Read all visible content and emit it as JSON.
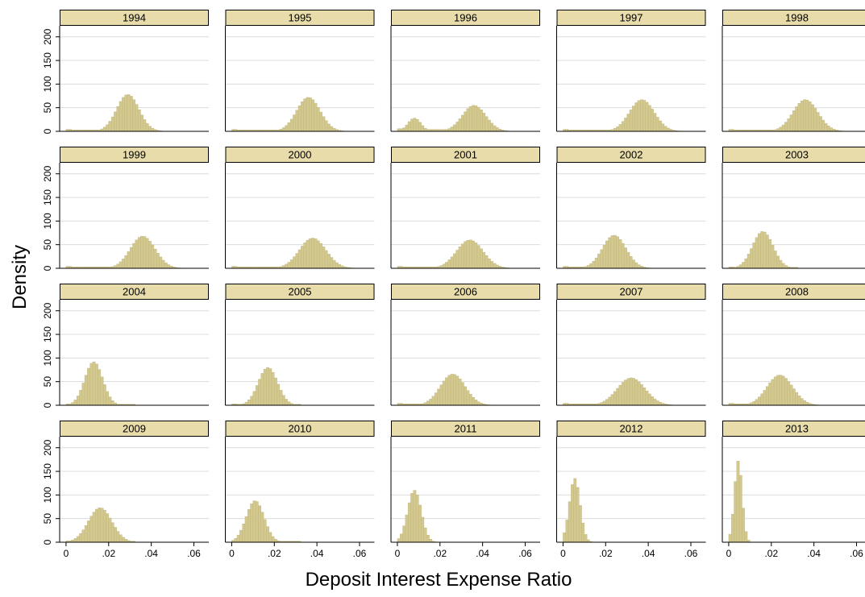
{
  "chart_data": {
    "type": "histogram",
    "layout": "faceted-grid",
    "xlabel": "Deposit Interest Expense Ratio",
    "ylabel": "Density",
    "xlim": [
      -0.003,
      0.067
    ],
    "ylim": [
      0,
      220
    ],
    "xticks": [
      0,
      0.02,
      0.04,
      0.06
    ],
    "xtick_labels": [
      "0",
      ".02",
      ".04",
      ".06"
    ],
    "yticks": [
      0,
      50,
      100,
      150,
      200
    ],
    "ytick_labels": [
      "0",
      "50",
      "100",
      "150",
      "200"
    ],
    "grid": "horizontal",
    "bin_width": 0.00125,
    "colors": {
      "bar_fill": "#d3c98f",
      "bar_stroke": "#bdb27a",
      "strip_fill": "#e8dcaa",
      "grid": "#dcdcdc",
      "axis": "#000000"
    },
    "panels": [
      {
        "year": "1994",
        "components": [
          {
            "mean": 0.029,
            "sd": 0.0052,
            "peak": 78
          }
        ],
        "tail": 3
      },
      {
        "year": "1995",
        "components": [
          {
            "mean": 0.036,
            "sd": 0.0055,
            "peak": 72
          }
        ],
        "tail": 3
      },
      {
        "year": "1996",
        "components": [
          {
            "mean": 0.008,
            "sd": 0.003,
            "peak": 28
          },
          {
            "mean": 0.036,
            "sd": 0.0055,
            "peak": 55
          }
        ],
        "tail": 4
      },
      {
        "year": "1997",
        "components": [
          {
            "mean": 0.037,
            "sd": 0.0058,
            "peak": 67
          }
        ],
        "tail": 3
      },
      {
        "year": "1998",
        "components": [
          {
            "mean": 0.036,
            "sd": 0.0058,
            "peak": 67
          }
        ],
        "tail": 3
      },
      {
        "year": "1999",
        "components": [
          {
            "mean": 0.036,
            "sd": 0.0058,
            "peak": 68
          }
        ],
        "tail": 3
      },
      {
        "year": "2000",
        "components": [
          {
            "mean": 0.038,
            "sd": 0.0062,
            "peak": 64
          }
        ],
        "tail": 3
      },
      {
        "year": "2001",
        "components": [
          {
            "mean": 0.034,
            "sd": 0.0062,
            "peak": 60
          }
        ],
        "tail": 3
      },
      {
        "year": "2002",
        "components": [
          {
            "mean": 0.024,
            "sd": 0.0055,
            "peak": 70
          }
        ],
        "tail": 3
      },
      {
        "year": "2003",
        "components": [
          {
            "mean": 0.016,
            "sd": 0.0048,
            "peak": 78
          }
        ],
        "tail": 2
      },
      {
        "year": "2004",
        "components": [
          {
            "mean": 0.013,
            "sd": 0.0042,
            "peak": 92
          }
        ],
        "tail": 2
      },
      {
        "year": "2005",
        "components": [
          {
            "mean": 0.017,
            "sd": 0.0045,
            "peak": 80
          }
        ],
        "tail": 2
      },
      {
        "year": "2006",
        "components": [
          {
            "mean": 0.026,
            "sd": 0.0058,
            "peak": 66
          }
        ],
        "tail": 3
      },
      {
        "year": "2007",
        "components": [
          {
            "mean": 0.032,
            "sd": 0.0065,
            "peak": 58
          }
        ],
        "tail": 3
      },
      {
        "year": "2008",
        "components": [
          {
            "mean": 0.024,
            "sd": 0.006,
            "peak": 64
          }
        ],
        "tail": 3
      },
      {
        "year": "2009",
        "components": [
          {
            "mean": 0.016,
            "sd": 0.0055,
            "peak": 73
          }
        ],
        "tail": 2
      },
      {
        "year": "2010",
        "components": [
          {
            "mean": 0.011,
            "sd": 0.0042,
            "peak": 88
          }
        ],
        "tail": 2
      },
      {
        "year": "2011",
        "components": [
          {
            "mean": 0.008,
            "sd": 0.0032,
            "peak": 110
          }
        ],
        "tail": 0
      },
      {
        "year": "2012",
        "components": [
          {
            "mean": 0.0055,
            "sd": 0.0025,
            "peak": 135
          }
        ],
        "tail": 0
      },
      {
        "year": "2013",
        "components": [
          {
            "mean": 0.0045,
            "sd": 0.0018,
            "peak": 172
          }
        ],
        "tail": 0
      }
    ]
  }
}
